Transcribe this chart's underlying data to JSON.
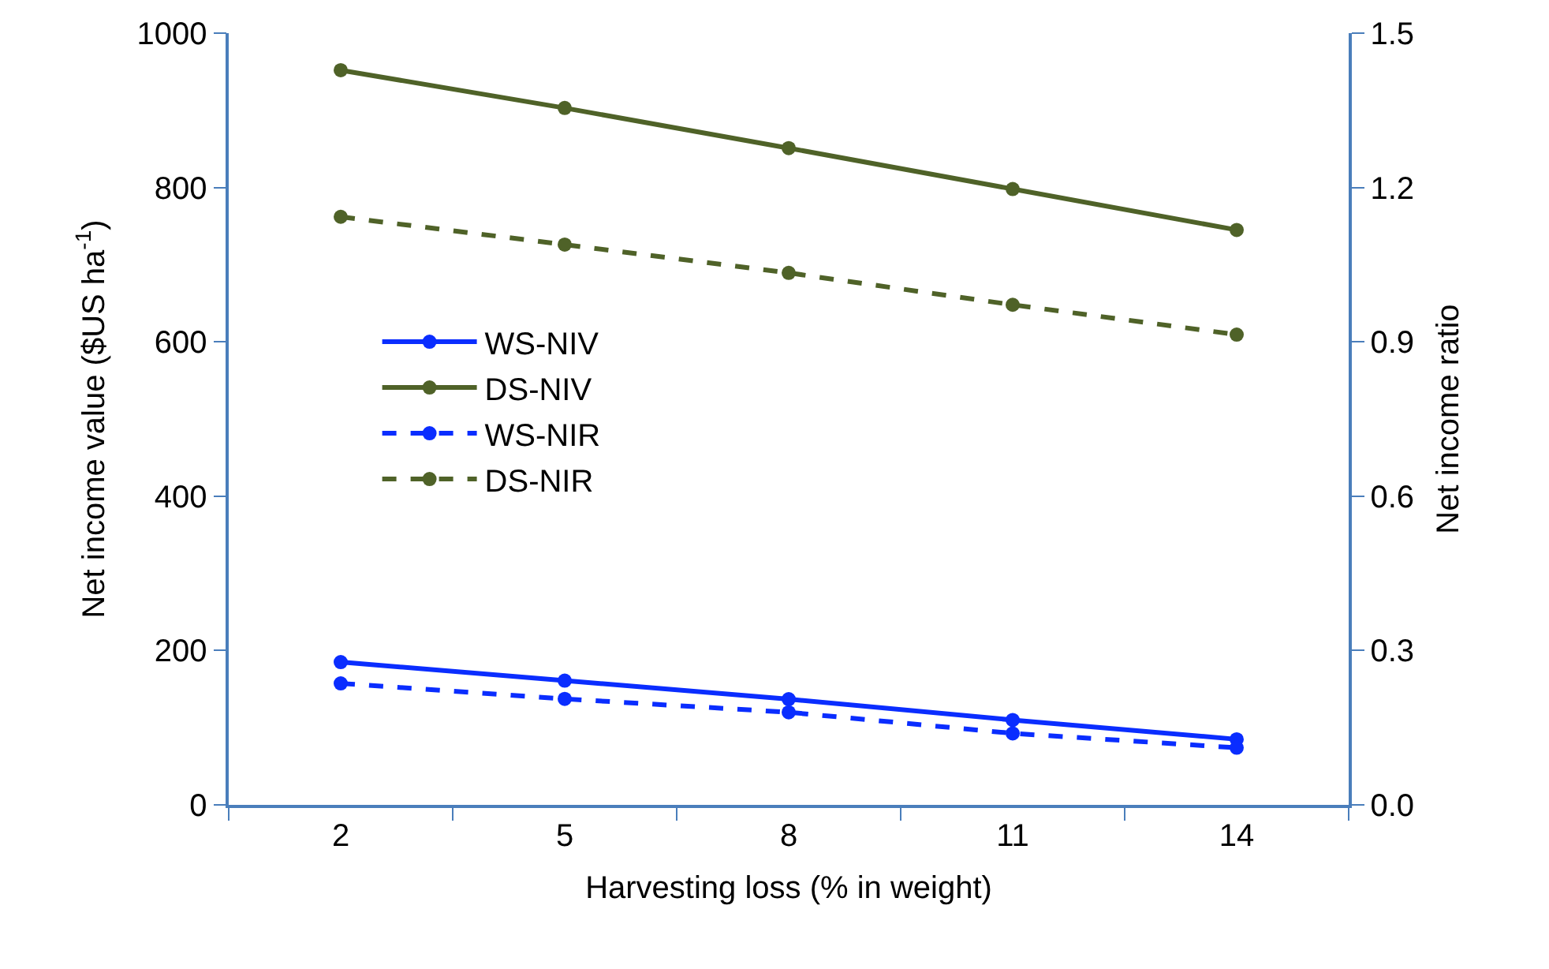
{
  "chart_data": {
    "type": "line",
    "xlabel": "Harvesting loss (% in weight)",
    "ylabel": "Net income value ($US ha$^{-1}$)",
    "y2label": "Net income ratio",
    "categories": [
      "2",
      "5",
      "8",
      "11",
      "14"
    ],
    "series": [
      {
        "name": "WS-NIV",
        "color": "#0a2dff",
        "line_style": "solid",
        "values": [
          185,
          161,
          137,
          110,
          85
        ]
      },
      {
        "name": "DS-NIV",
        "color": "#4f6228",
        "line_style": "solid",
        "values": [
          952,
          903,
          851,
          798,
          745
        ]
      },
      {
        "name": "WS-NIR",
        "color": "#0a2dff",
        "line_style": "dashed",
        "axis": "y2",
        "values": [
          0.236,
          0.206,
          0.18,
          0.139,
          0.111
        ]
      },
      {
        "name": "DS-NIR",
        "color": "#4f6228",
        "line_style": "dashed",
        "axis": "y2",
        "values": [
          1.143,
          1.089,
          1.034,
          0.972,
          0.914
        ]
      }
    ],
    "ylim": [
      0,
      1000
    ],
    "yticks": [
      0,
      200,
      400,
      600,
      800,
      1000
    ],
    "y2lim": [
      0,
      1.5
    ],
    "y2ticks": [
      {
        "value": 0,
        "label": "0.0"
      },
      0.3,
      0.6,
      0.9,
      1.2,
      1.5
    ],
    "legend": "left",
    "marker": "circle"
  }
}
